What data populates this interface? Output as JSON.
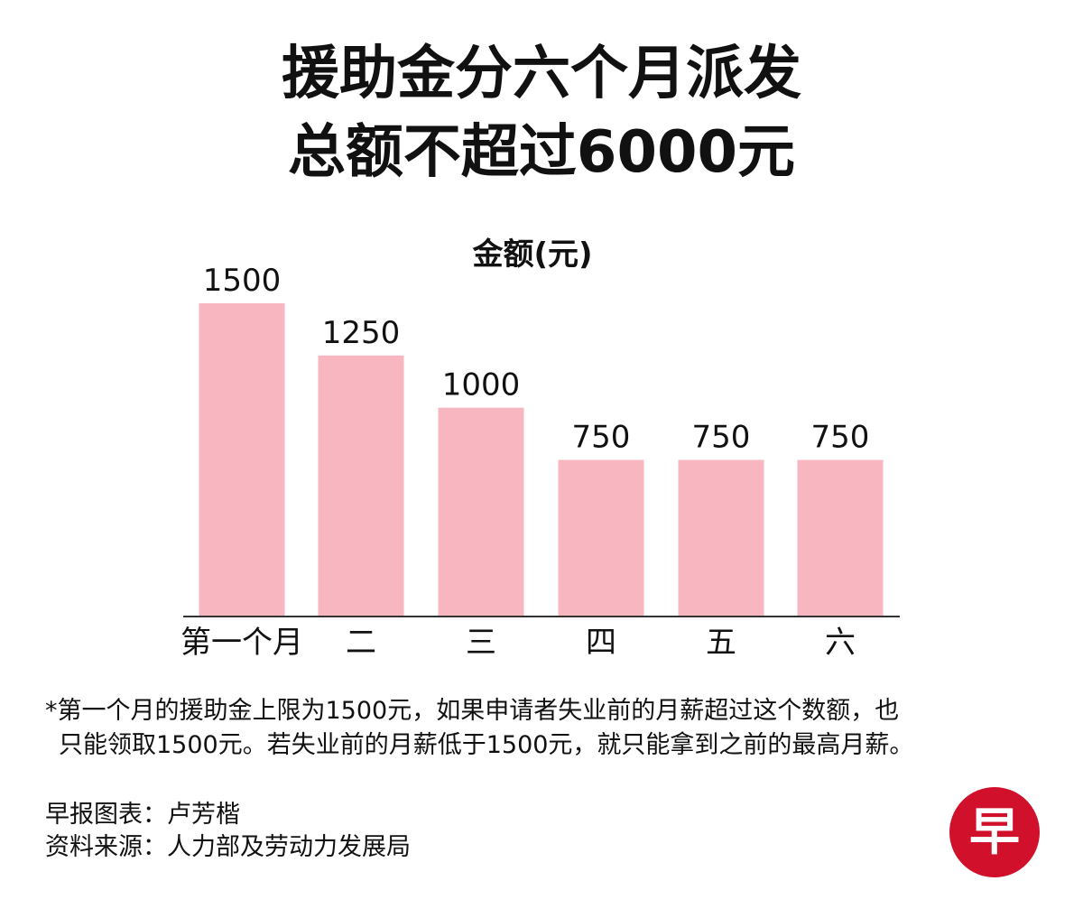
{
  "headline": {
    "line1": "援助金分六个月派发",
    "line2": "总额不超过6000元"
  },
  "chart_data": {
    "type": "bar",
    "ylabel": "金额(元)",
    "categories": [
      "第一个月",
      "二",
      "三",
      "四",
      "五",
      "六"
    ],
    "values": [
      1500,
      1250,
      1000,
      750,
      750,
      750
    ],
    "value_labels": [
      "1500",
      "1250",
      "1000",
      "750",
      "750",
      "750"
    ],
    "ylim": [
      0,
      1500
    ],
    "grid": false,
    "legend": "none",
    "bar_color": "#f7b6c0",
    "axis_color": "#333333"
  },
  "footnote": {
    "line1": "*第一个月的援助金上限为1500元，如果申请者失业前的月薪超过这个数额，也",
    "line2": "只能领取1500元。若失业前的月薪低于1500元，就只能拿到之前的最高月薪。"
  },
  "credits": {
    "graphics": "早报图表：卢芳楷",
    "source": "资料来源：人力部及劳动力发展局"
  },
  "logo": {
    "glyph": "早",
    "color": "#d1102c"
  }
}
